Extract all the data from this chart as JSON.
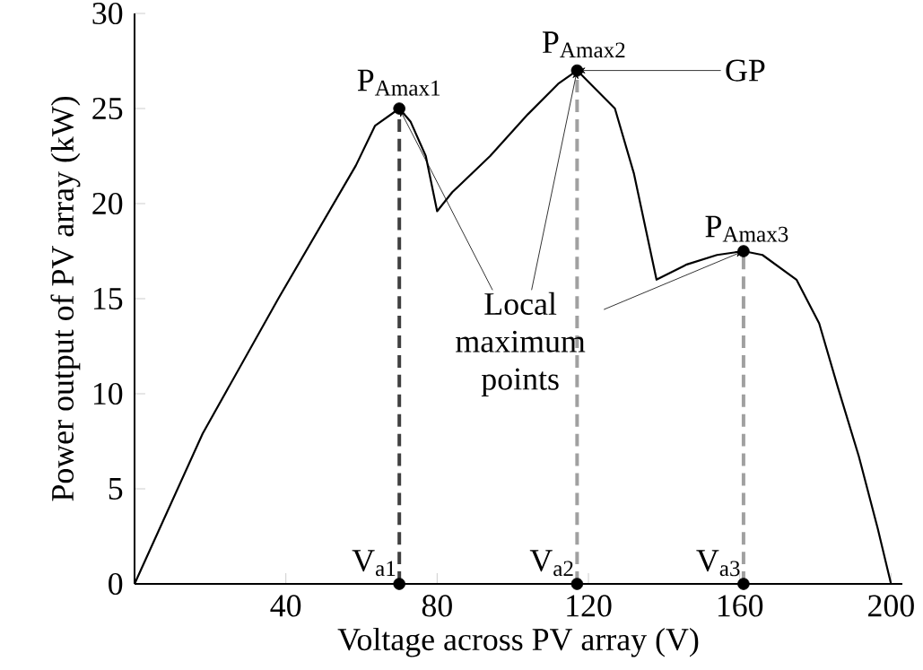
{
  "chart_data": {
    "type": "line",
    "xlabel": "Voltage across PV array (V)",
    "ylabel": "Power output of PV array (kW)",
    "xlim": [
      0,
      203
    ],
    "ylim": [
      0,
      30
    ],
    "xticks": [
      40,
      80,
      120,
      160,
      200
    ],
    "yticks": [
      0,
      5,
      10,
      15,
      20,
      25,
      30
    ],
    "series": [
      {
        "color": "#000000",
        "line_style": "solid",
        "marker": "none",
        "x": [
          0,
          18,
          38,
          58.5,
          63.6,
          70,
          73,
          77,
          80,
          84,
          94,
          104,
          112,
          117,
          127,
          132,
          138,
          146,
          154,
          161,
          166,
          175,
          181,
          186,
          191.5,
          196.5,
          200
        ],
        "values": [
          0,
          7.9,
          15,
          22,
          24.1,
          25,
          24.3,
          22.5,
          19.6,
          20.6,
          22.5,
          24.7,
          26.3,
          27,
          25,
          21.6,
          16,
          16.8,
          17.3,
          17.5,
          17.3,
          16,
          13.7,
          10.3,
          6.7,
          2.9,
          0
        ]
      },
      {
        "type": "scatter",
        "color": "#000000",
        "marker": "circle",
        "x": [
          70,
          117,
          161,
          70,
          117,
          161
        ],
        "values": [
          25,
          27,
          17.5,
          0,
          0,
          0
        ]
      }
    ],
    "ref_lines": [
      {
        "axis": "x",
        "value": 70,
        "label": "V$_{a1}$",
        "color": "#404040",
        "line_style": "dashed"
      },
      {
        "axis": "x",
        "value": 117,
        "label": "V$_{a2}$",
        "color": "#a0a0a0",
        "line_style": "dashed"
      },
      {
        "axis": "x",
        "value": 161,
        "label": "V$_{a3}$",
        "color": "#a0a0a0",
        "line_style": "dashed"
      }
    ],
    "annotations": [
      {
        "text": "P$_{Amax1}$",
        "x": 70,
        "y": 25
      },
      {
        "text": "P$_{Amax2}$",
        "x": 117,
        "y": 27
      },
      {
        "text": "P$_{Amax3}$",
        "x": 161,
        "y": 17.5
      },
      "GP",
      {
        "text": "Local maximum points",
        "x": 117,
        "y": 27
      }
    ],
    "grid": false
  }
}
